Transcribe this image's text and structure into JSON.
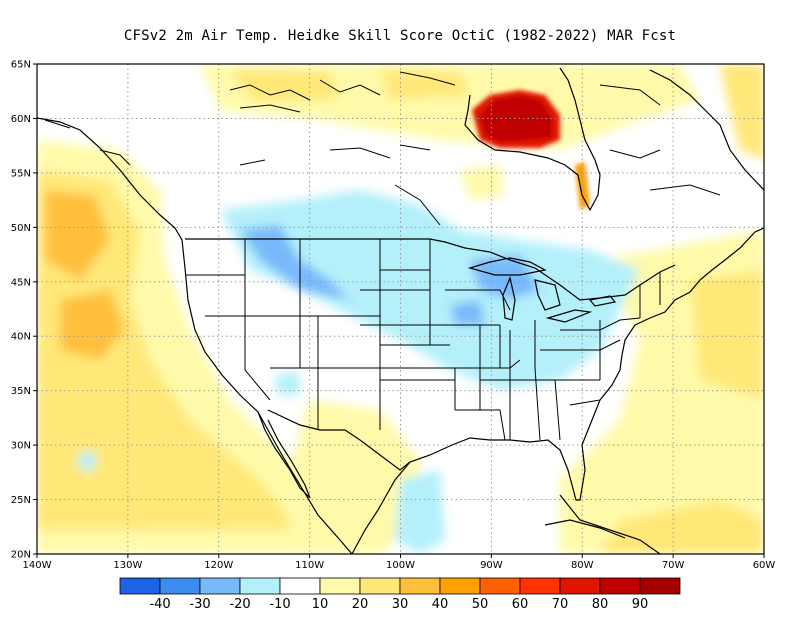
{
  "title": "CFSv2  2m Air Temp. Heidke Skill Score OctiC (1982-2022) MAR Fcst",
  "map": {
    "lon_range": [
      -140,
      -60
    ],
    "lat_range": [
      20,
      65
    ],
    "lat_ticks": [
      {
        "v": 65,
        "label": "65N"
      },
      {
        "v": 60,
        "label": "60N"
      },
      {
        "v": 55,
        "label": "55N"
      },
      {
        "v": 50,
        "label": "50N"
      },
      {
        "v": 45,
        "label": "45N"
      },
      {
        "v": 40,
        "label": "40N"
      },
      {
        "v": 35,
        "label": "35N"
      },
      {
        "v": 30,
        "label": "30N"
      },
      {
        "v": 25,
        "label": "25N"
      },
      {
        "v": 20,
        "label": "20N"
      }
    ],
    "lon_ticks": [
      {
        "v": -140,
        "label": "140W"
      },
      {
        "v": -130,
        "label": "130W"
      },
      {
        "v": -120,
        "label": "120W"
      },
      {
        "v": -110,
        "label": "110W"
      },
      {
        "v": -100,
        "label": "100W"
      },
      {
        "v": -90,
        "label": "90W"
      },
      {
        "v": -80,
        "label": "80W"
      },
      {
        "v": -70,
        "label": "70W"
      },
      {
        "v": -60,
        "label": "60W"
      }
    ],
    "grid": true
  },
  "colorbar": {
    "colors": [
      "#1e63e6",
      "#3c8cf0",
      "#78b9fa",
      "#b4f0fa",
      "#ffffff",
      "#fffaaa",
      "#ffe878",
      "#ffc03c",
      "#ffa000",
      "#ff6000",
      "#ff3200",
      "#e11400",
      "#c00000",
      "#a50000"
    ],
    "labels": [
      "-40",
      "-30",
      "-20",
      "-10",
      "10",
      "20",
      "30",
      "40",
      "50",
      "60",
      "70",
      "80",
      "90"
    ]
  }
}
